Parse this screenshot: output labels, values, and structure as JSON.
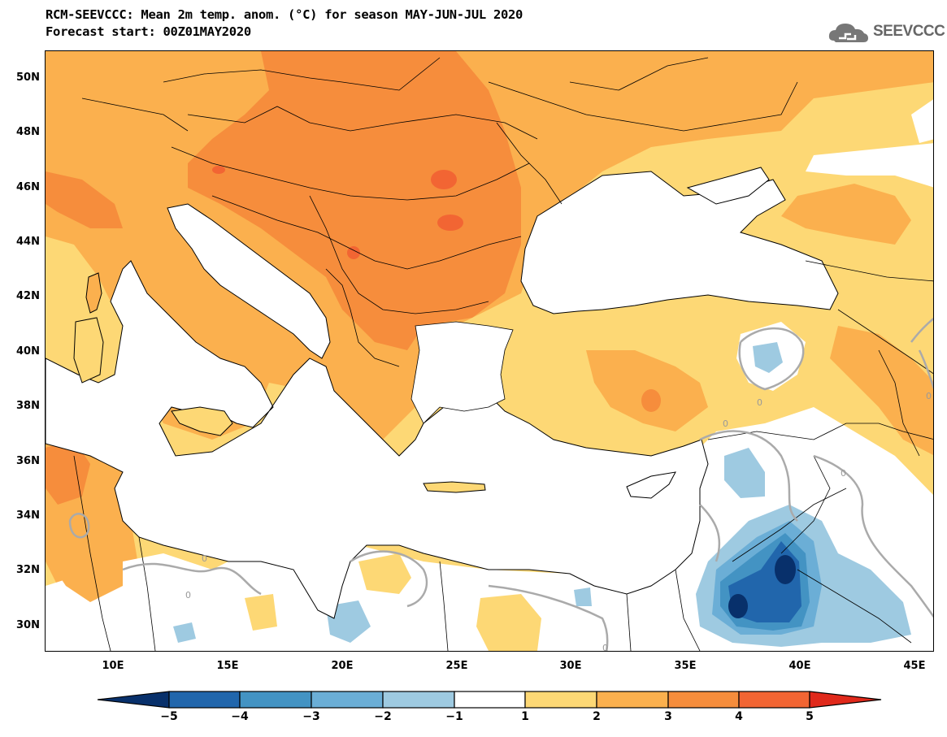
{
  "header": {
    "title": "RCM-SEEVCCC: Mean 2m temp. anom. (°C) for season MAY-JUN-JUL 2020",
    "subtitle": "Forecast start: 00Z01MAY2020",
    "logo_text": "SEEVCCC"
  },
  "map": {
    "lat_ticks": [
      "50N",
      "48N",
      "46N",
      "44N",
      "42N",
      "40N",
      "38N",
      "36N",
      "34N",
      "32N",
      "30N"
    ],
    "lon_ticks": [
      "10E",
      "15E",
      "20E",
      "25E",
      "30E",
      "35E",
      "40E",
      "45E"
    ],
    "contour_labels": [
      "0",
      "0",
      "0",
      "0",
      "0",
      "0",
      "0"
    ]
  },
  "colorbar": {
    "labels": [
      "−5",
      "−4",
      "−3",
      "−2",
      "−1",
      "1",
      "2",
      "3",
      "4",
      "5"
    ],
    "colors": [
      "#08306b",
      "#2166ac",
      "#4393c3",
      "#6baed6",
      "#9ecae1",
      "#ffffff",
      "#fdd875",
      "#fbb04e",
      "#f68d3c",
      "#f26533",
      "#e0291b"
    ]
  }
}
